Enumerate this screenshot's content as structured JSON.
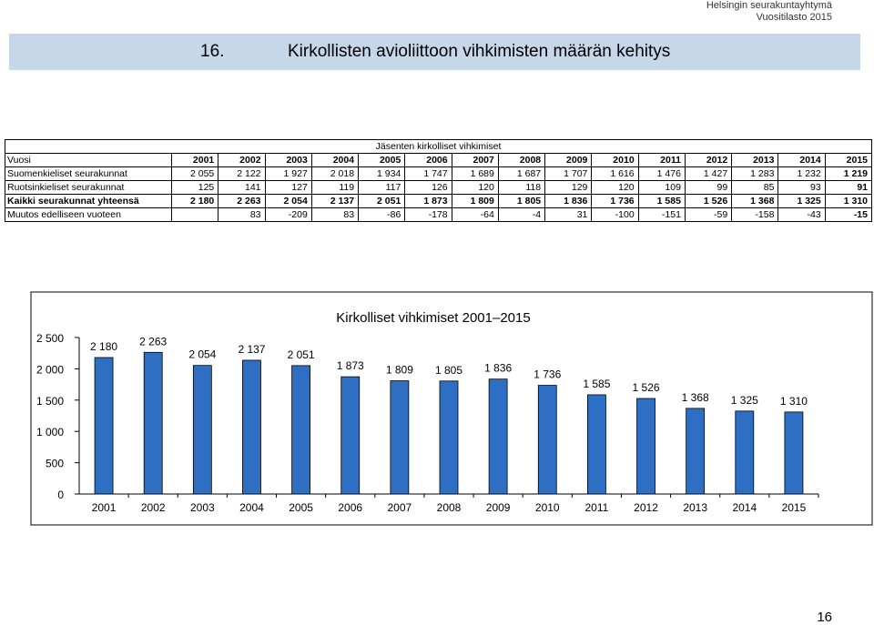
{
  "org": {
    "line1": "Helsingin seurakuntayhtymä",
    "line2": "Vuositilasto 2015"
  },
  "section": {
    "number": "16.",
    "title": "Kirkollisten avioliittoon vihkimisten määrän kehitys"
  },
  "table": {
    "header": "Jäsenten kirkolliset vihkimiset",
    "year_label": "Vuosi",
    "years": [
      "2001",
      "2002",
      "2003",
      "2004",
      "2005",
      "2006",
      "2007",
      "2008",
      "2009",
      "2010",
      "2011",
      "2012",
      "2013",
      "2014",
      "2015"
    ],
    "rows": [
      {
        "label": "Suomenkieliset seurakunnat",
        "bold": false,
        "values": [
          "2 055",
          "2 122",
          "1 927",
          "2 018",
          "1 934",
          "1 747",
          "1 689",
          "1 687",
          "1 707",
          "1 616",
          "1 476",
          "1 427",
          "1 283",
          "1 232",
          "1 219"
        ]
      },
      {
        "label": "Ruotsinkieliset seurakunnat",
        "bold": false,
        "values": [
          "125",
          "141",
          "127",
          "119",
          "117",
          "126",
          "120",
          "118",
          "129",
          "120",
          "109",
          "99",
          "85",
          "93",
          "91"
        ]
      },
      {
        "label": "Kaikki seurakunnat yhteensä",
        "bold": true,
        "values": [
          "2 180",
          "2 263",
          "2 054",
          "2 137",
          "2 051",
          "1 873",
          "1 809",
          "1 805",
          "1 836",
          "1 736",
          "1 585",
          "1 526",
          "1 368",
          "1 325",
          "1 310"
        ]
      },
      {
        "label": "Muutos edelliseen vuoteen",
        "bold": false,
        "values": [
          "",
          "83",
          "-209",
          "83",
          "-86",
          "-178",
          "-64",
          "-4",
          "31",
          "-100",
          "-151",
          "-59",
          "-158",
          "-43",
          "-15"
        ]
      }
    ]
  },
  "chart_data": {
    "type": "bar",
    "title": "Kirkolliset vihkimiset 2001–2015",
    "categories": [
      "2001",
      "2002",
      "2003",
      "2004",
      "2005",
      "2006",
      "2007",
      "2008",
      "2009",
      "2010",
      "2011",
      "2012",
      "2013",
      "2014",
      "2015"
    ],
    "values": [
      2180,
      2263,
      2054,
      2137,
      2051,
      1873,
      1809,
      1805,
      1836,
      1736,
      1585,
      1526,
      1368,
      1325,
      1310
    ],
    "value_labels": [
      "2 180",
      "2 263",
      "2 054",
      "2 137",
      "2 051",
      "1 873",
      "1 809",
      "1 805",
      "1 836",
      "1 736",
      "1 585",
      "1 526",
      "1 368",
      "1 325",
      "1 310"
    ],
    "y_ticks": [
      0,
      500,
      1000,
      1500,
      2000,
      2500
    ],
    "y_tick_labels": [
      "0",
      "500",
      "1 000",
      "1 500",
      "2 000",
      "2 500"
    ],
    "ylim": [
      0,
      2500
    ],
    "grid": false,
    "legend": "none",
    "bar_color": "#2e6fc4"
  },
  "page_number": "16"
}
